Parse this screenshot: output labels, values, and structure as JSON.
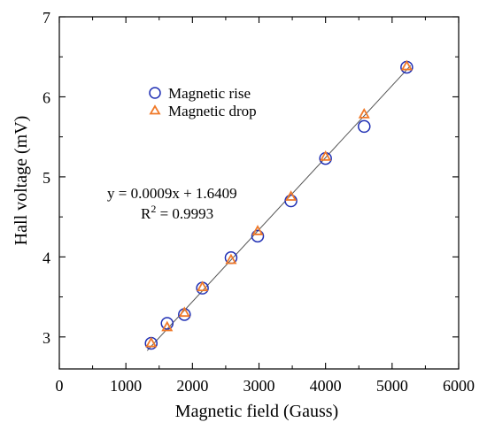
{
  "chart_data": {
    "type": "scatter",
    "title": "",
    "xlabel": "Magnetic field (Gauss)",
    "ylabel": "Hall voltage (mV)",
    "xlim": [
      0,
      6000
    ],
    "ylim": [
      2.6,
      7
    ],
    "xticks": [
      0,
      1000,
      2000,
      3000,
      4000,
      5000,
      6000
    ],
    "yticks": [
      3,
      4,
      5,
      6,
      7
    ],
    "xtick_labels": [
      "0",
      "1000",
      "2000",
      "3000",
      "4000",
      "5000",
      "6000"
    ],
    "ytick_labels": [
      "3",
      "4",
      "5",
      "6",
      "7"
    ],
    "grid": false,
    "legend_position": "top-left",
    "series": [
      {
        "name": "Magnetic rise",
        "marker": "circle",
        "color": "#1f2fb4",
        "points": [
          {
            "x": 1380,
            "y": 2.92
          },
          {
            "x": 1620,
            "y": 3.17
          },
          {
            "x": 1880,
            "y": 3.28
          },
          {
            "x": 2150,
            "y": 3.61
          },
          {
            "x": 2580,
            "y": 3.99
          },
          {
            "x": 2980,
            "y": 4.26
          },
          {
            "x": 3480,
            "y": 4.7
          },
          {
            "x": 4000,
            "y": 5.23
          },
          {
            "x": 4580,
            "y": 5.63
          },
          {
            "x": 5220,
            "y": 6.37
          }
        ]
      },
      {
        "name": "Magnetic drop",
        "marker": "triangle",
        "color": "#f07a2a",
        "points": [
          {
            "x": 1380,
            "y": 2.92
          },
          {
            "x": 1620,
            "y": 3.12
          },
          {
            "x": 1880,
            "y": 3.3
          },
          {
            "x": 2150,
            "y": 3.62
          },
          {
            "x": 2580,
            "y": 3.96
          },
          {
            "x": 2980,
            "y": 4.32
          },
          {
            "x": 3480,
            "y": 4.75
          },
          {
            "x": 4000,
            "y": 5.25
          },
          {
            "x": 4580,
            "y": 5.78
          },
          {
            "x": 5220,
            "y": 6.38
          }
        ]
      }
    ],
    "fit": {
      "slope": 0.0009,
      "intercept": 1.6409,
      "x_range": [
        1380,
        5220
      ],
      "color": "#555555",
      "equation": "y = 0.0009x + 1.6409",
      "r2_label": "R",
      "r2_sup": "2",
      "r2_value": " = 0.9993"
    }
  }
}
